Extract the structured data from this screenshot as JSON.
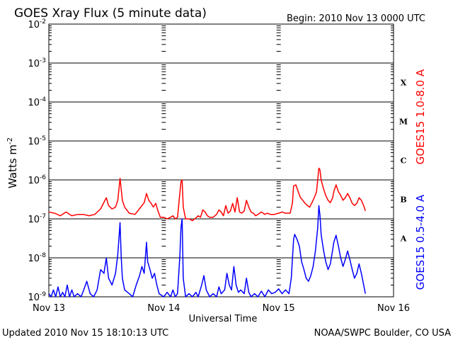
{
  "chart_data": {
    "type": "line",
    "title": "GOES Xray Flux (5 minute data)",
    "begin_label": "Begin:  2010 Nov 13 0000 UTC",
    "xlabel": "Universal Time",
    "ylabel_main": "Watts m",
    "ylabel_sup": "-2",
    "footer_left": "Updated 2010 Nov 15 18:10:13 UTC",
    "footer_right": "NOAA/SWPC Boulder, CO USA",
    "x_unit": "days since 2010 Nov 13 0000 UTC",
    "xlim": [
      0,
      3
    ],
    "x_ticks": [
      {
        "x": 0,
        "label": "Nov 13"
      },
      {
        "x": 1,
        "label": "Nov 14"
      },
      {
        "x": 2,
        "label": "Nov 15"
      },
      {
        "x": 3,
        "label": "Nov 16"
      }
    ],
    "y_scale": "log",
    "ylim": [
      1e-09,
      0.01
    ],
    "y_ticks": [
      {
        "exp": -9,
        "base": "10",
        "sup": "-9"
      },
      {
        "exp": -8,
        "base": "10",
        "sup": "-8"
      },
      {
        "exp": -7,
        "base": "10",
        "sup": "-7"
      },
      {
        "exp": -6,
        "base": "10",
        "sup": "-6"
      },
      {
        "exp": -5,
        "base": "10",
        "sup": "-5"
      },
      {
        "exp": -4,
        "base": "10",
        "sup": "-4"
      },
      {
        "exp": -3,
        "base": "10",
        "sup": "-3"
      },
      {
        "exp": -2,
        "base": "10",
        "sup": "-2"
      }
    ],
    "flare_classes": [
      {
        "label": "A",
        "exp": -7.5
      },
      {
        "label": "B",
        "exp": -6.5
      },
      {
        "label": "C",
        "exp": -5.5
      },
      {
        "label": "M",
        "exp": -4.5
      },
      {
        "label": "X",
        "exp": -3.5
      }
    ],
    "grid": true,
    "series": [
      {
        "name": "GOES15 1.0-8.0 A",
        "color": "#ff0000",
        "points": [
          [
            0.0,
            1.5e-07
          ],
          [
            0.05,
            1.4e-07
          ],
          [
            0.1,
            1.2e-07
          ],
          [
            0.15,
            1.5e-07
          ],
          [
            0.2,
            1.2e-07
          ],
          [
            0.25,
            1.3e-07
          ],
          [
            0.3,
            1.3e-07
          ],
          [
            0.35,
            1.2e-07
          ],
          [
            0.4,
            1.3e-07
          ],
          [
            0.45,
            1.8e-07
          ],
          [
            0.5,
            3.5e-07
          ],
          [
            0.52,
            2.2e-07
          ],
          [
            0.55,
            1.8e-07
          ],
          [
            0.58,
            2e-07
          ],
          [
            0.6,
            3e-07
          ],
          [
            0.62,
            1.1e-06
          ],
          [
            0.64,
            3e-07
          ],
          [
            0.66,
            2e-07
          ],
          [
            0.7,
            1.4e-07
          ],
          [
            0.75,
            1.3e-07
          ],
          [
            0.8,
            2e-07
          ],
          [
            0.83,
            2.6e-07
          ],
          [
            0.85,
            4.5e-07
          ],
          [
            0.87,
            3e-07
          ],
          [
            0.89,
            2.5e-07
          ],
          [
            0.91,
            2e-07
          ],
          [
            0.93,
            2.5e-07
          ],
          [
            0.95,
            1.6e-07
          ],
          [
            0.97,
            1.1e-07
          ],
          [
            1.0,
            1.1e-07
          ],
          [
            1.03,
            1e-07
          ],
          [
            1.06,
            1.1e-07
          ],
          [
            1.08,
            1.2e-07
          ],
          [
            1.1,
            1e-07
          ],
          [
            1.12,
            1.1e-07
          ],
          [
            1.15,
            9e-07
          ],
          [
            1.16,
            1e-06
          ],
          [
            1.17,
            2e-07
          ],
          [
            1.19,
            1e-07
          ],
          [
            1.22,
            1e-07
          ],
          [
            1.25,
            9e-08
          ],
          [
            1.27,
            1e-07
          ],
          [
            1.3,
            1.2e-07
          ],
          [
            1.32,
            1.1e-07
          ],
          [
            1.34,
            1.7e-07
          ],
          [
            1.36,
            1.5e-07
          ],
          [
            1.38,
            1.2e-07
          ],
          [
            1.4,
            1.1e-07
          ],
          [
            1.43,
            1.1e-07
          ],
          [
            1.46,
            1.3e-07
          ],
          [
            1.48,
            1.7e-07
          ],
          [
            1.5,
            1.5e-07
          ],
          [
            1.52,
            1.2e-07
          ],
          [
            1.54,
            2.2e-07
          ],
          [
            1.56,
            1.4e-07
          ],
          [
            1.58,
            1.6e-07
          ],
          [
            1.6,
            2.5e-07
          ],
          [
            1.62,
            1.5e-07
          ],
          [
            1.64,
            3.5e-07
          ],
          [
            1.66,
            1.5e-07
          ],
          [
            1.68,
            1.4e-07
          ],
          [
            1.7,
            1.6e-07
          ],
          [
            1.72,
            3e-07
          ],
          [
            1.74,
            2e-07
          ],
          [
            1.76,
            1.5e-07
          ],
          [
            1.78,
            1.4e-07
          ],
          [
            1.8,
            1.2e-07
          ],
          [
            1.82,
            1.3e-07
          ],
          [
            1.85,
            1.5e-07
          ],
          [
            1.88,
            1.3e-07
          ],
          [
            1.9,
            1.4e-07
          ],
          [
            1.93,
            1.3e-07
          ],
          [
            1.96,
            1.3e-07
          ],
          [
            2.0,
            1.4e-07
          ],
          [
            2.03,
            1.5e-07
          ],
          [
            2.06,
            1.4e-07
          ],
          [
            2.1,
            1.4e-07
          ],
          [
            2.12,
            2.5e-07
          ],
          [
            2.13,
            7e-07
          ],
          [
            2.15,
            7.5e-07
          ],
          [
            2.17,
            5e-07
          ],
          [
            2.19,
            3.5e-07
          ],
          [
            2.21,
            3e-07
          ],
          [
            2.23,
            2.5e-07
          ],
          [
            2.25,
            2.2e-07
          ],
          [
            2.27,
            2e-07
          ],
          [
            2.29,
            2.6e-07
          ],
          [
            2.31,
            3.5e-07
          ],
          [
            2.33,
            5e-07
          ],
          [
            2.35,
            2e-06
          ],
          [
            2.36,
            1.8e-06
          ],
          [
            2.37,
            1e-06
          ],
          [
            2.39,
            6e-07
          ],
          [
            2.41,
            4e-07
          ],
          [
            2.43,
            3e-07
          ],
          [
            2.45,
            2.6e-07
          ],
          [
            2.47,
            3.5e-07
          ],
          [
            2.48,
            5e-07
          ],
          [
            2.5,
            7.5e-07
          ],
          [
            2.52,
            5e-07
          ],
          [
            2.54,
            4e-07
          ],
          [
            2.56,
            3e-07
          ],
          [
            2.58,
            3.5e-07
          ],
          [
            2.6,
            4.5e-07
          ],
          [
            2.62,
            3.5e-07
          ],
          [
            2.64,
            2.5e-07
          ],
          [
            2.66,
            2.2e-07
          ],
          [
            2.68,
            2.5e-07
          ],
          [
            2.7,
            3.5e-07
          ],
          [
            2.72,
            3e-07
          ],
          [
            2.74,
            2.2e-07
          ],
          [
            2.755,
            1.6e-07
          ]
        ]
      },
      {
        "name": "GOES15 0.5-4.0 A",
        "color": "#0000ff",
        "points": [
          [
            0.0,
            1.2e-09
          ],
          [
            0.02,
            1e-09
          ],
          [
            0.04,
            1.5e-09
          ],
          [
            0.06,
            1e-09
          ],
          [
            0.08,
            1.8e-09
          ],
          [
            0.1,
            1e-09
          ],
          [
            0.12,
            1.3e-09
          ],
          [
            0.14,
            1e-09
          ],
          [
            0.16,
            2e-09
          ],
          [
            0.18,
            1e-09
          ],
          [
            0.2,
            1.5e-09
          ],
          [
            0.22,
            1e-09
          ],
          [
            0.25,
            1.2e-09
          ],
          [
            0.28,
            1e-09
          ],
          [
            0.3,
            1.4e-09
          ],
          [
            0.33,
            2.5e-09
          ],
          [
            0.36,
            1.2e-09
          ],
          [
            0.39,
            1e-09
          ],
          [
            0.42,
            1.5e-09
          ],
          [
            0.45,
            5e-09
          ],
          [
            0.48,
            4e-09
          ],
          [
            0.5,
            1e-08
          ],
          [
            0.52,
            3e-09
          ],
          [
            0.55,
            2e-09
          ],
          [
            0.58,
            4e-09
          ],
          [
            0.6,
            1.2e-08
          ],
          [
            0.62,
            8e-08
          ],
          [
            0.63,
            1e-08
          ],
          [
            0.64,
            3e-09
          ],
          [
            0.66,
            1.5e-09
          ],
          [
            0.7,
            1.2e-09
          ],
          [
            0.73,
            1e-09
          ],
          [
            0.76,
            2e-09
          ],
          [
            0.79,
            3.5e-09
          ],
          [
            0.81,
            6e-09
          ],
          [
            0.83,
            4e-09
          ],
          [
            0.85,
            2.5e-08
          ],
          [
            0.86,
            8e-09
          ],
          [
            0.88,
            5e-09
          ],
          [
            0.9,
            3e-09
          ],
          [
            0.92,
            4e-09
          ],
          [
            0.94,
            2e-09
          ],
          [
            0.96,
            1.2e-09
          ],
          [
            1.0,
            1e-09
          ],
          [
            1.03,
            1.3e-09
          ],
          [
            1.06,
            1e-09
          ],
          [
            1.08,
            1.5e-09
          ],
          [
            1.1,
            1e-09
          ],
          [
            1.12,
            1.2e-09
          ],
          [
            1.14,
            1.1e-08
          ],
          [
            1.15,
            6e-08
          ],
          [
            1.16,
            1e-07
          ],
          [
            1.17,
            3e-09
          ],
          [
            1.19,
            1e-09
          ],
          [
            1.22,
            1.2e-09
          ],
          [
            1.25,
            1e-09
          ],
          [
            1.28,
            1.3e-09
          ],
          [
            1.3,
            1e-09
          ],
          [
            1.33,
            2e-09
          ],
          [
            1.35,
            3.5e-09
          ],
          [
            1.37,
            1.5e-09
          ],
          [
            1.4,
            1e-09
          ],
          [
            1.43,
            1.2e-09
          ],
          [
            1.46,
            1e-09
          ],
          [
            1.48,
            1.8e-09
          ],
          [
            1.5,
            1.2e-09
          ],
          [
            1.53,
            1.5e-09
          ],
          [
            1.55,
            4e-09
          ],
          [
            1.57,
            2e-09
          ],
          [
            1.59,
            1.5e-09
          ],
          [
            1.61,
            6e-09
          ],
          [
            1.63,
            2e-09
          ],
          [
            1.65,
            1.3e-09
          ],
          [
            1.67,
            1.5e-09
          ],
          [
            1.7,
            1.2e-09
          ],
          [
            1.72,
            3e-09
          ],
          [
            1.74,
            1.3e-09
          ],
          [
            1.76,
            1e-09
          ],
          [
            1.79,
            1.2e-09
          ],
          [
            1.82,
            1e-09
          ],
          [
            1.85,
            1.4e-09
          ],
          [
            1.88,
            1e-09
          ],
          [
            1.91,
            1.5e-09
          ],
          [
            1.94,
            1.2e-09
          ],
          [
            1.97,
            1.3e-09
          ],
          [
            2.0,
            1.6e-09
          ],
          [
            2.03,
            1.2e-09
          ],
          [
            2.06,
            1.5e-09
          ],
          [
            2.09,
            1.2e-09
          ],
          [
            2.11,
            3e-09
          ],
          [
            2.13,
            3e-08
          ],
          [
            2.14,
            4e-08
          ],
          [
            2.16,
            3e-08
          ],
          [
            2.18,
            2e-08
          ],
          [
            2.2,
            8e-09
          ],
          [
            2.22,
            5e-09
          ],
          [
            2.24,
            3e-09
          ],
          [
            2.26,
            2.5e-09
          ],
          [
            2.28,
            3.5e-09
          ],
          [
            2.3,
            6e-09
          ],
          [
            2.32,
            1.5e-08
          ],
          [
            2.34,
            6e-08
          ],
          [
            2.35,
            2.2e-07
          ],
          [
            2.36,
            1.2e-07
          ],
          [
            2.37,
            4e-08
          ],
          [
            2.39,
            1.6e-08
          ],
          [
            2.41,
            8e-09
          ],
          [
            2.43,
            5e-09
          ],
          [
            2.45,
            7e-09
          ],
          [
            2.47,
            1.6e-08
          ],
          [
            2.48,
            2.5e-08
          ],
          [
            2.5,
            3.8e-08
          ],
          [
            2.52,
            2e-08
          ],
          [
            2.54,
            1e-08
          ],
          [
            2.56,
            6e-09
          ],
          [
            2.58,
            9e-09
          ],
          [
            2.6,
            1.5e-08
          ],
          [
            2.62,
            9e-09
          ],
          [
            2.64,
            5e-09
          ],
          [
            2.66,
            3e-09
          ],
          [
            2.68,
            4e-09
          ],
          [
            2.7,
            7e-09
          ],
          [
            2.72,
            4e-09
          ],
          [
            2.74,
            2e-09
          ],
          [
            2.755,
            1.2e-09
          ]
        ]
      }
    ]
  }
}
